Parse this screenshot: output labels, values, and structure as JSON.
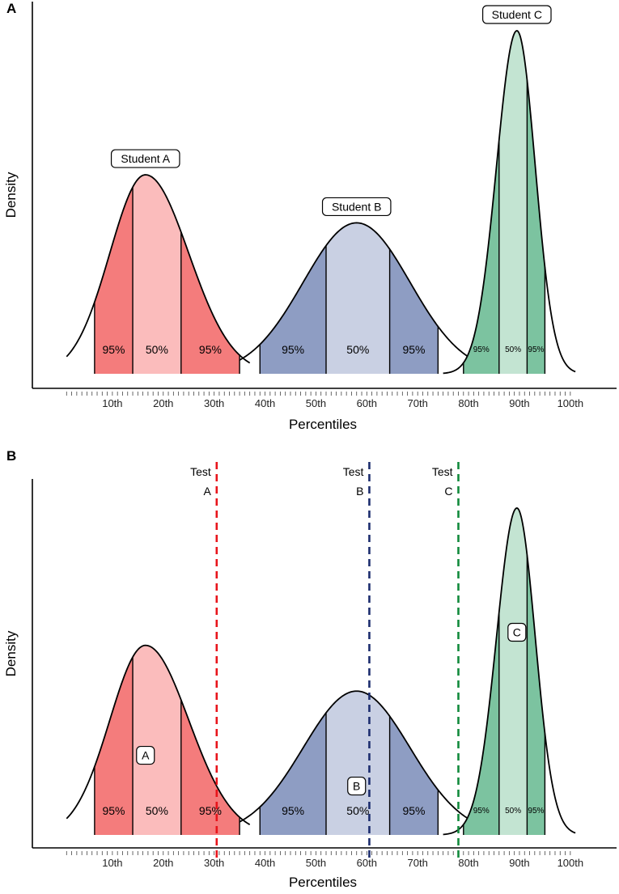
{
  "colors": {
    "student_a": {
      "outer": "#f47c7c",
      "inner": "#fbbcbc"
    },
    "student_b": {
      "outer": "#8e9dc3",
      "inner": "#c9d0e3"
    },
    "student_c": {
      "outer": "#7cc3a0",
      "inner": "#c3e4d2"
    },
    "test_a": "#e8141b",
    "test_b": "#1c2d6e",
    "test_c": "#128a3c"
  },
  "chart_data": [
    {
      "type": "area",
      "panel": "A",
      "xlabel": "Percentiles",
      "ylabel": "Density",
      "xlim": [
        0,
        104
      ],
      "ylim": [
        0,
        1
      ],
      "tick_labels": [
        "10th",
        "20th",
        "30th",
        "40th",
        "50th",
        "60th",
        "70th",
        "80th",
        "90th",
        "100th"
      ],
      "tick_values": [
        10,
        20,
        30,
        40,
        50,
        60,
        70,
        80,
        90,
        100
      ],
      "series": [
        {
          "name": "Student A",
          "peak_x": 16.5,
          "peak_density": 0.58,
          "sd_left": 7.0,
          "sd_right": 8.5,
          "range": [
            1,
            37
          ],
          "ci95": [
            6.5,
            35.0
          ],
          "ci50": [
            14.0,
            23.5
          ],
          "labels": [
            "95%",
            "50%",
            "95%"
          ]
        },
        {
          "name": "Student B",
          "peak_x": 58.0,
          "peak_density": 0.44,
          "sd_left": 10.5,
          "sd_right": 10.5,
          "range": [
            35,
            81
          ],
          "ci95": [
            39.0,
            74.0
          ],
          "ci50": [
            52.0,
            64.5
          ],
          "labels": [
            "95%",
            "50%",
            "95%"
          ]
        },
        {
          "name": "Student C",
          "peak_x": 89.5,
          "peak_density": 1.0,
          "sd_left": 4.0,
          "sd_right": 3.6,
          "range": [
            75,
            101
          ],
          "ci95": [
            79.0,
            95.0
          ],
          "ci50": [
            86.0,
            91.5
          ],
          "labels": [
            "95%",
            "50%",
            "95%"
          ]
        }
      ]
    },
    {
      "type": "area",
      "panel": "B",
      "xlabel": "Percentiles",
      "ylabel": "Density",
      "xlim": [
        0,
        104
      ],
      "ylim": [
        0,
        1
      ],
      "tick_labels": [
        "10th",
        "20th",
        "30th",
        "40th",
        "50th",
        "60th",
        "70th",
        "80th",
        "90th",
        "100th"
      ],
      "tick_values": [
        10,
        20,
        30,
        40,
        50,
        60,
        70,
        80,
        90,
        100
      ],
      "series": [
        {
          "name": "A",
          "peak_x": 16.5,
          "peak_density": 0.58,
          "sd_left": 7.0,
          "sd_right": 8.5,
          "range": [
            1,
            37
          ],
          "ci95": [
            6.5,
            35.0
          ],
          "ci50": [
            14.0,
            23.5
          ],
          "labels": [
            "95%",
            "50%",
            "95%"
          ]
        },
        {
          "name": "B",
          "peak_x": 58.0,
          "peak_density": 0.44,
          "sd_left": 10.5,
          "sd_right": 10.5,
          "range": [
            35,
            81
          ],
          "ci95": [
            39.0,
            74.0
          ],
          "ci50": [
            52.0,
            64.5
          ],
          "labels": [
            "95%",
            "50%",
            "95%"
          ]
        },
        {
          "name": "C",
          "peak_x": 89.5,
          "peak_density": 1.0,
          "sd_left": 4.0,
          "sd_right": 3.6,
          "range": [
            75,
            101
          ],
          "ci95": [
            79.0,
            95.0
          ],
          "ci50": [
            86.0,
            91.5
          ],
          "labels": [
            "95%",
            "50%",
            "95%"
          ]
        }
      ],
      "reference_lines": [
        {
          "name": "Test A",
          "lines": [
            "Test",
            "A"
          ],
          "x": 30.5
        },
        {
          "name": "Test B",
          "lines": [
            "Test",
            "B"
          ],
          "x": 60.5
        },
        {
          "name": "Test C",
          "lines": [
            "Test",
            "C"
          ],
          "x": 78.0
        }
      ]
    }
  ]
}
